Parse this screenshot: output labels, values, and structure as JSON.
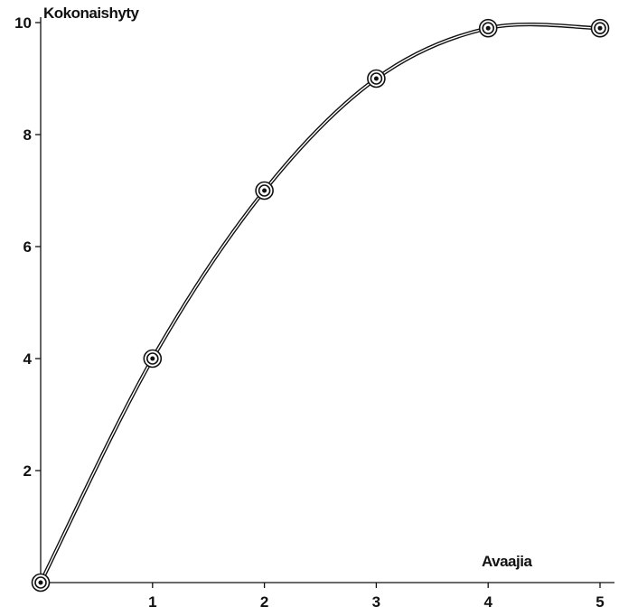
{
  "chart_data": {
    "type": "line",
    "title": "",
    "xlabel": "Avaajia",
    "ylabel": "Kokonaishyty",
    "xlim": [
      0,
      5
    ],
    "ylim": [
      0,
      10
    ],
    "x_ticks": [
      "1",
      "2",
      "3",
      "4",
      "5"
    ],
    "y_ticks": [
      "2",
      "4",
      "6",
      "8",
      "10"
    ],
    "grid": false,
    "legend": "none",
    "series": [
      {
        "x": [
          0,
          1,
          2,
          3,
          4,
          5
        ],
        "y": [
          0,
          4,
          7,
          9,
          9.9,
          9.9
        ],
        "marker": "double-circle",
        "line": "smooth-double",
        "color": "#111111"
      }
    ]
  }
}
